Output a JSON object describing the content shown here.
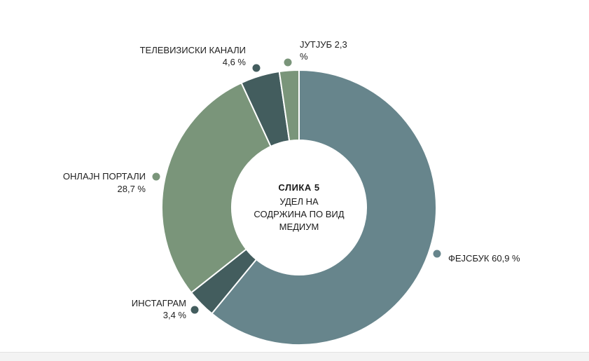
{
  "chart_data": {
    "type": "pie",
    "variant": "donut",
    "center_label": {
      "title": "СЛИКА  5",
      "lines": [
        "УДЕЛ НА",
        "СОДРЖИНА ПО ВИД",
        "МЕДИУМ"
      ]
    },
    "slices": [
      {
        "name": "ФЕЈСБУК",
        "value": 60.9,
        "label_lines": [
          "ФЕЈСБУК 60,9 %"
        ],
        "color": "#67858c"
      },
      {
        "name": "ИНСТАГРАМ",
        "value": 3.4,
        "label_lines": [
          "ИНСТАГРАМ",
          "3,4 %"
        ],
        "color": "#435d5e"
      },
      {
        "name": "ОНЛАЈН ПОРТАЛИ",
        "value": 28.7,
        "label_lines": [
          "ОНЛАЈН ПОРТАЛИ",
          "28,7 %"
        ],
        "color": "#7a957a"
      },
      {
        "name": "ТЕЛЕВИЗИСКИ КАНАЛИ",
        "value": 4.6,
        "label_lines": [
          "ТЕЛЕВИЗИСКИ КАНАЛИ",
          "4,6 %"
        ],
        "color": "#435d5e"
      },
      {
        "name": "ЈУТЈУБ",
        "value": 2.3,
        "label_lines": [
          "ЈУТЈУБ 2,3",
          "%"
        ],
        "color": "#7a957a"
      }
    ],
    "legend": "none"
  }
}
